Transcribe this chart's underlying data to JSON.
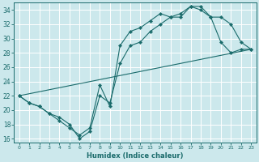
{
  "xlabel": "Humidex (Indice chaleur)",
  "bg_color": "#cce8ec",
  "line_color": "#1a6b6b",
  "grid_color": "#ffffff",
  "xlim": [
    -0.5,
    23.5
  ],
  "ylim": [
    15.5,
    35.0
  ],
  "xticks": [
    0,
    1,
    2,
    3,
    4,
    5,
    6,
    7,
    8,
    9,
    10,
    11,
    12,
    13,
    14,
    15,
    16,
    17,
    18,
    19,
    20,
    21,
    22,
    23
  ],
  "yticks": [
    16,
    18,
    20,
    22,
    24,
    26,
    28,
    30,
    32,
    34
  ],
  "line1_x": [
    0,
    1,
    2,
    3,
    4,
    5,
    6,
    7,
    8,
    9,
    10,
    11,
    12,
    13,
    14,
    15,
    16,
    17,
    18,
    19,
    20,
    21,
    22,
    23
  ],
  "line1_y": [
    22,
    21,
    20.5,
    19.5,
    18.5,
    17.5,
    16.5,
    17.5,
    23.5,
    20.5,
    29,
    31,
    31.5,
    32.5,
    33.5,
    33,
    33.5,
    34.5,
    34.5,
    33,
    33,
    32,
    29.5,
    28.5
  ],
  "line2_x": [
    0,
    1,
    2,
    3,
    4,
    5,
    6,
    7,
    8,
    9,
    10,
    11,
    12,
    13,
    14,
    15,
    16,
    17,
    18,
    19,
    20,
    21,
    22,
    23
  ],
  "line2_y": [
    22,
    21,
    20.5,
    19.5,
    19,
    18,
    16,
    17,
    22,
    21,
    26.5,
    29,
    29.5,
    31,
    32,
    33,
    33,
    34.5,
    34,
    33,
    29.5,
    28,
    28.5,
    28.5
  ],
  "line3_x": [
    0,
    23
  ],
  "line3_y": [
    22,
    28.5
  ],
  "marker": "D",
  "markersize": 2.2,
  "linewidth": 0.8
}
